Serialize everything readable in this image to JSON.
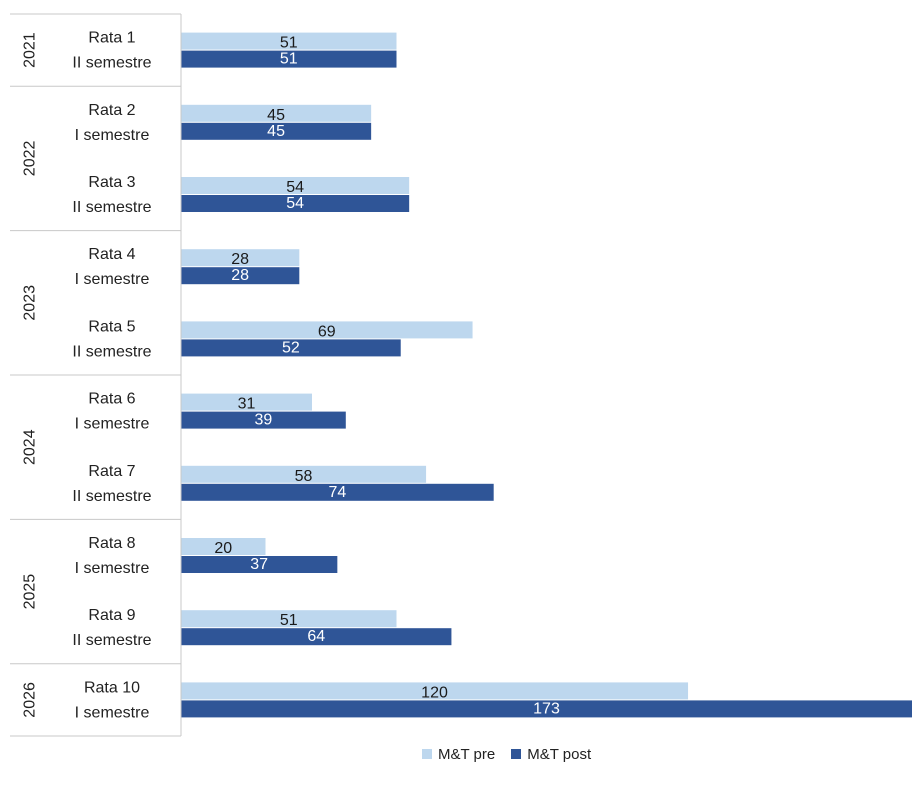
{
  "chart_data": {
    "type": "bar",
    "orientation": "horizontal",
    "groups": [
      {
        "year": "2021",
        "items": [
          {
            "rata": "Rata 1",
            "semester": "II semestre",
            "pre": 51,
            "post": 51
          }
        ]
      },
      {
        "year": "2022",
        "items": [
          {
            "rata": "Rata 2",
            "semester": "I semestre",
            "pre": 45,
            "post": 45
          },
          {
            "rata": "Rata 3",
            "semester": "II semestre",
            "pre": 54,
            "post": 54
          }
        ]
      },
      {
        "year": "2023",
        "items": [
          {
            "rata": "Rata 4",
            "semester": "I semestre",
            "pre": 28,
            "post": 28
          },
          {
            "rata": "Rata 5",
            "semester": "II semestre",
            "pre": 69,
            "post": 52
          }
        ]
      },
      {
        "year": "2024",
        "items": [
          {
            "rata": "Rata 6",
            "semester": "I semestre",
            "pre": 31,
            "post": 39
          },
          {
            "rata": "Rata 7",
            "semester": "II semestre",
            "pre": 58,
            "post": 74
          }
        ]
      },
      {
        "year": "2025",
        "items": [
          {
            "rata": "Rata 8",
            "semester": "I semestre",
            "pre": 20,
            "post": 37
          },
          {
            "rata": "Rata 9",
            "semester": "II semestre",
            "pre": 51,
            "post": 64
          }
        ]
      },
      {
        "year": "2026",
        "items": [
          {
            "rata": "Rata 10",
            "semester": "I semestre",
            "pre": 120,
            "post": 173
          }
        ]
      }
    ],
    "series": [
      {
        "key": "pre",
        "name": "M&T pre",
        "color": "#bdd7ee"
      },
      {
        "key": "post",
        "name": "M&T post",
        "color": "#2f5597"
      }
    ],
    "xlim": [
      0,
      173
    ],
    "legend": "bottom",
    "grid": false
  },
  "legend": {
    "pre_label": "M&T pre",
    "post_label": "M&T post"
  }
}
